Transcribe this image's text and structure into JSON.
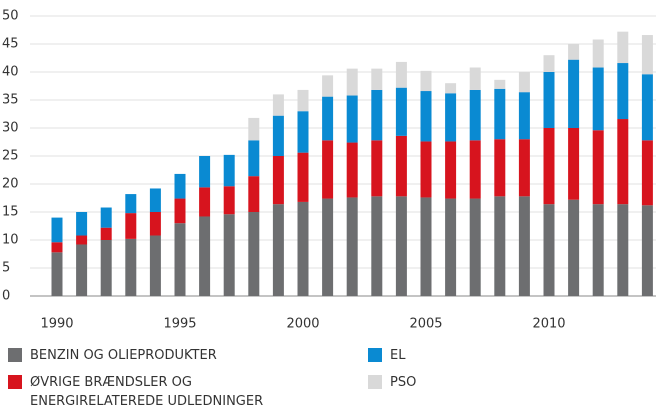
{
  "chart_data": {
    "type": "stacked_bar",
    "categories": [
      "1990",
      null,
      null,
      null,
      null,
      "1995",
      null,
      null,
      null,
      null,
      "2000",
      null,
      null,
      null,
      null,
      "2005",
      null,
      null,
      null,
      null,
      "2010",
      null,
      null,
      null,
      null
    ],
    "series": [
      {
        "name": "BENZIN OG OLIEPRODUKTER",
        "color": "#6d6e70",
        "values": [
          7.8,
          9.2,
          10,
          10.2,
          10.8,
          13,
          14.2,
          14.6,
          15,
          16.4,
          16.8,
          17.4,
          17.6,
          17.8,
          17.8,
          17.6,
          17.4,
          17.4,
          17.8,
          17.8,
          16.4,
          17.2,
          16.4,
          16.4,
          16.2
        ]
      },
      {
        "name": "ØVRIGE BRÆNDSLER OG ENERGIRELATEREDE UDLEDNINGER",
        "color": "#d7141e",
        "values": [
          1.8,
          1.6,
          2.2,
          4.6,
          4.2,
          4.4,
          5.2,
          5,
          6.4,
          8.6,
          8.8,
          10.4,
          9.8,
          10,
          10.8,
          10,
          10.2,
          10.4,
          10.2,
          10.2,
          13.6,
          12.8,
          13.2,
          15.2,
          11.6
        ]
      },
      {
        "name": "EL",
        "color": "#0a8ad2",
        "values": [
          4.4,
          4.2,
          3.6,
          3.4,
          4.2,
          4.4,
          5.6,
          5.6,
          6.4,
          7.2,
          7.4,
          7.8,
          8.4,
          9,
          8.6,
          9,
          8.6,
          9,
          9,
          8.4,
          10,
          12.2,
          11.2,
          10,
          11.8
        ]
      },
      {
        "name": "PSO",
        "color": "#d9d9d9",
        "values": [
          0,
          0,
          0,
          0,
          0,
          0,
          0,
          0,
          4,
          3.8,
          3.8,
          3.8,
          4.8,
          3.8,
          4.6,
          3.6,
          1.8,
          4,
          1.6,
          3.6,
          3,
          2.8,
          5,
          5.6,
          7
        ]
      }
    ],
    "ylim": [
      0,
      50
    ],
    "yticks": [
      0,
      5,
      10,
      15,
      20,
      25,
      30,
      35,
      40,
      45,
      50
    ],
    "grid": true
  }
}
